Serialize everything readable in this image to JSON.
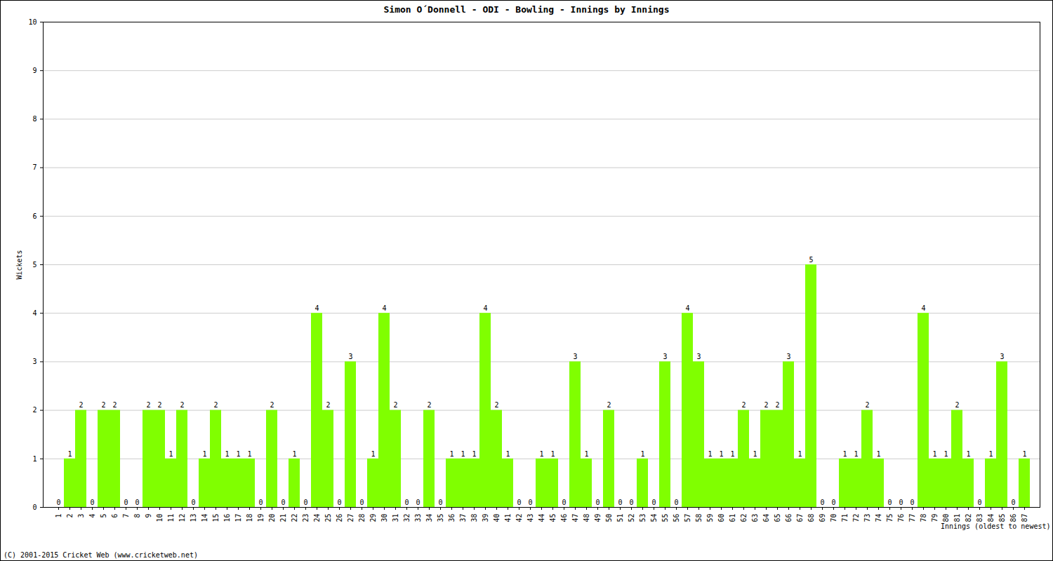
{
  "chart_data": {
    "type": "bar",
    "title": "Simon O´Donnell - ODI - Bowling - Innings by Innings",
    "x_label": "Innings (oldest to newest)",
    "y_label": "Wickets",
    "caption": "(C) 2001-2015 Cricket Web (www.cricketweb.net)",
    "categories": [
      1,
      2,
      3,
      4,
      5,
      6,
      7,
      8,
      9,
      10,
      11,
      12,
      13,
      14,
      15,
      16,
      17,
      18,
      19,
      20,
      21,
      22,
      23,
      24,
      25,
      26,
      27,
      28,
      29,
      30,
      31,
      32,
      33,
      34,
      35,
      36,
      37,
      38,
      39,
      40,
      41,
      42,
      43,
      44,
      45,
      46,
      47,
      48,
      49,
      50,
      51,
      52,
      53,
      54,
      55,
      56,
      57,
      58,
      59,
      60,
      61,
      62,
      63,
      64,
      65,
      66,
      67,
      68,
      69,
      70,
      71,
      72,
      73,
      74,
      75,
      76,
      77,
      78,
      79,
      80,
      81,
      82,
      83,
      84,
      85,
      86,
      87
    ],
    "values": [
      0,
      1,
      2,
      0,
      2,
      2,
      0,
      0,
      2,
      2,
      1,
      2,
      0,
      1,
      2,
      1,
      1,
      1,
      0,
      2,
      0,
      1,
      0,
      4,
      2,
      0,
      3,
      0,
      1,
      4,
      2,
      0,
      0,
      2,
      0,
      1,
      1,
      1,
      4,
      2,
      1,
      0,
      0,
      1,
      1,
      0,
      3,
      1,
      0,
      2,
      0,
      0,
      1,
      0,
      3,
      0,
      4,
      3,
      1,
      1,
      1,
      2,
      1,
      2,
      2,
      3,
      1,
      5,
      0,
      0,
      1,
      1,
      2,
      1,
      0,
      0,
      0,
      4,
      1,
      1,
      2,
      1,
      0,
      1,
      3,
      0,
      1
    ],
    "color": "#80ff00",
    "ylim": [
      0,
      10
    ],
    "yticks": [
      0,
      1,
      2,
      3,
      4,
      5,
      6,
      7,
      8,
      9,
      10
    ],
    "grid": true,
    "data_labels": true
  }
}
